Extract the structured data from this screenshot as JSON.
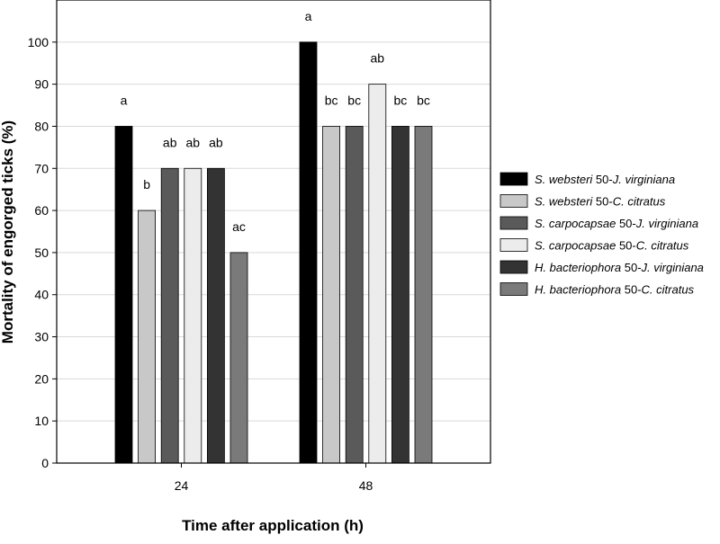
{
  "chart_data": {
    "type": "bar",
    "xlabel": "Time after application (h)",
    "ylabel": "Mortality of engorged ticks (%)",
    "ylim": [
      0,
      110
    ],
    "yticks": [
      0,
      10,
      20,
      30,
      40,
      50,
      60,
      70,
      80,
      90,
      100
    ],
    "categories": [
      "24",
      "48"
    ],
    "grid": "horizontal",
    "legend_position": "right",
    "series": [
      {
        "name": "S. websteri 50-J. virginiana",
        "name_italic": "S. websteri",
        "name_rest": " 50-",
        "name_italic2": "J. virginiana",
        "color": "#000000",
        "values": [
          80,
          100
        ],
        "labels": [
          "a",
          "a"
        ]
      },
      {
        "name": "S. websteri 50-C. citratus",
        "name_italic": "S. websteri",
        "name_rest": " 50-",
        "name_italic2": "C. citratus",
        "color": "#c8c8c8",
        "values": [
          60,
          80
        ],
        "labels": [
          "b",
          "bc"
        ]
      },
      {
        "name": "S. carpocapsae 50-J. virginiana",
        "name_italic": "S. carpocapsae",
        "name_rest": " 50-",
        "name_italic2": "J. virginiana",
        "color": "#5a5a5a",
        "values": [
          70,
          80
        ],
        "labels": [
          "ab",
          "bc"
        ]
      },
      {
        "name": "S. carpocapsae 50-C. citratus",
        "name_italic": "S. carpocapsae",
        "name_rest": " 50-",
        "name_italic2": "C. citratus",
        "color": "#ececec",
        "values": [
          70,
          90
        ],
        "labels": [
          "ab",
          "ab"
        ]
      },
      {
        "name": "H. bacteriophora 50-J. virginiana",
        "name_italic": "H. bacteriophora",
        "name_rest": " 50-",
        "name_italic2": "J. virginiana",
        "color": "#333333",
        "values": [
          70,
          80
        ],
        "labels": [
          "ab",
          "bc"
        ]
      },
      {
        "name": "H. bacteriophora 50-C. citratus",
        "name_italic": "H. bacteriophora",
        "name_rest": " 50-",
        "name_italic2": "C. citratus",
        "color": "#7a7a7a",
        "values": [
          50,
          80
        ],
        "labels": [
          "ac",
          "bc"
        ]
      }
    ]
  }
}
